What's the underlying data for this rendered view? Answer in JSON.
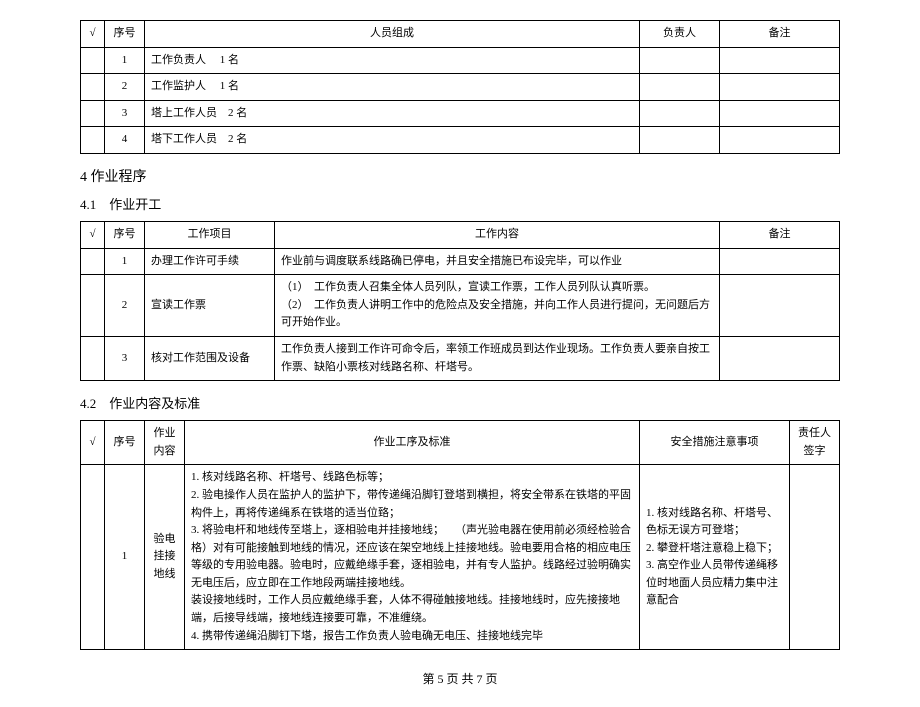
{
  "table1": {
    "headers": [
      "√",
      "序号",
      "人员组成",
      "负责人",
      "备注"
    ],
    "rows": [
      {
        "seq": "1",
        "comp": "工作负责人　 1 名",
        "resp": "",
        "note": ""
      },
      {
        "seq": "2",
        "comp": "工作监护人　 1 名",
        "resp": "",
        "note": ""
      },
      {
        "seq": "3",
        "comp": "塔上工作人员　2 名",
        "resp": "",
        "note": ""
      },
      {
        "seq": "4",
        "comp": "塔下工作人员　2 名",
        "resp": "",
        "note": ""
      }
    ]
  },
  "section4": "4  作业程序",
  "section41": "4.1　作业开工",
  "table2": {
    "headers": [
      "√",
      "序号",
      "工作项目",
      "工作内容",
      "备注"
    ],
    "rows": [
      {
        "seq": "1",
        "item": "办理工作许可手续",
        "content": "作业前与调度联系线路确已停电，并且安全措施已布设完毕，可以作业",
        "note": ""
      },
      {
        "seq": "2",
        "item": "宣读工作票",
        "content": "（1）　工作负责人召集全体人员列队，宣读工作票，工作人员列队认真听票。\n（2）　工作负责人讲明工作中的危险点及安全措施，并向工作人员进行提问，无问题后方可开始作业。",
        "note": ""
      },
      {
        "seq": "3",
        "item": "核对工作范围及设备",
        "content": "工作负责人接到工作许可命令后，率领工作班成员到达作业现场。工作负责人要亲自按工作票、缺陷小票核对线路名称、杆塔号。",
        "note": ""
      }
    ]
  },
  "section42": "4.2　作业内容及标准",
  "table3": {
    "headers": [
      "√",
      "序号",
      "作业内容",
      "作业工序及标准",
      "安全措施注意事项",
      "责任人签字"
    ],
    "rows": [
      {
        "seq": "1",
        "opname": "验电挂接地线",
        "workproc": "1. 核对线路名称、杆塔号、线路色标等；\n2. 验电操作人员在监护人的监护下，带传递绳沿脚钉登塔到横担，将安全带系在铁塔的平固构件上，再将传递绳系在铁塔的适当位臵；\n3. 将验电杆和地线传至塔上，逐相验电并挂接地线；　　（声光验电器在使用前必须经检验合格）对有可能接触到地线的情况，还应该在架空地线上挂接地线。验电要用合格的相应电压等级的专用验电器。验电时，应戴绝缘手套，逐相验电，并有专人监护。线路经过验明确实无电压后，应立即在工作地段两端挂接地线。\n装设接地线时，工作人员应戴绝缘手套，人体不得碰触接地线。挂接地线时，应先接接地端，后接导线端，接地线连接要可靠，不准缠绕。\n4. 携带传递绳沿脚钉下塔，报告工作负责人验电确无电压、挂接地线完毕",
        "safety": "1. 核对线路名称、杆塔号、色标无误方可登塔；\n2. 攀登杆塔注意稳上稳下；\n3. 高空作业人员带传递绳移位时地面人员应精力集中注意配合",
        "sign": ""
      }
    ]
  },
  "footer": "第 5  页  共 7 页"
}
